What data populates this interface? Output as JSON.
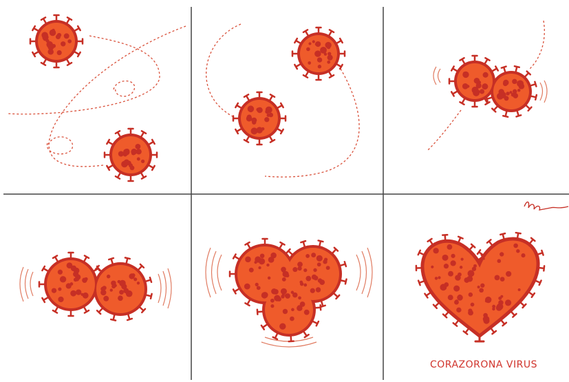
{
  "caption": "CORAZORONA VIRUS"
}
